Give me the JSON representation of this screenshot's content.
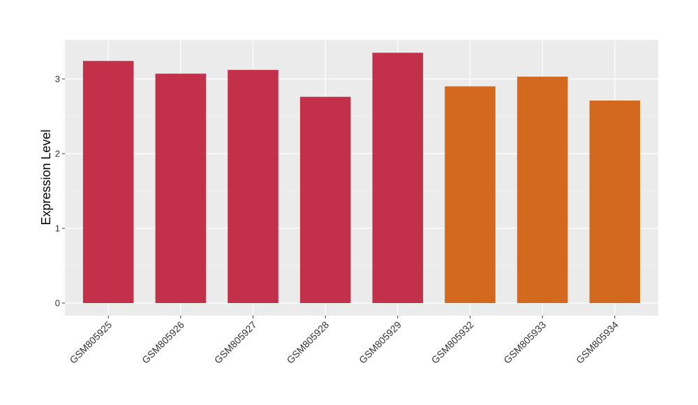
{
  "chart_data": {
    "type": "bar",
    "y_label": "Expression Level",
    "categories": [
      "GSM805925",
      "GSM805926",
      "GSM805927",
      "GSM805928",
      "GSM805929",
      "GSM805932",
      "GSM805933",
      "GSM805934"
    ],
    "values": [
      3.24,
      3.07,
      3.12,
      2.76,
      3.35,
      2.9,
      3.03,
      2.71
    ],
    "colors": [
      "#c23049",
      "#c23049",
      "#c23049",
      "#c23049",
      "#c23049",
      "#d2691e",
      "#d2691e",
      "#d2691e"
    ],
    "ylim": [
      -0.168,
      3.523
    ],
    "yticks": [
      0,
      1,
      2,
      3
    ],
    "grid": true
  }
}
